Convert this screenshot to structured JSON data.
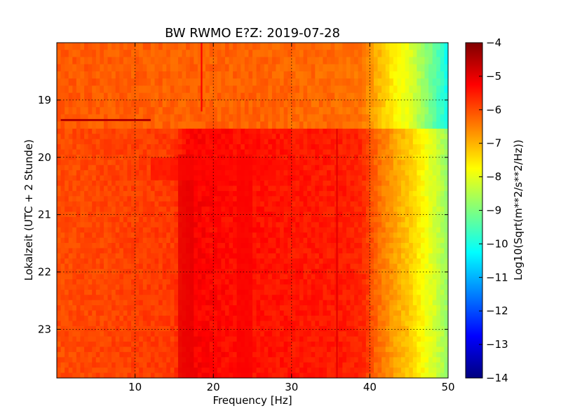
{
  "chart_data": {
    "type": "heatmap",
    "title": "BW RWMO E?Z: 2019-07-28",
    "xlabel": "Frequency [Hz]",
    "ylabel": "Lokalzeit (UTC + 2 Stunde)",
    "xlim": [
      0,
      50
    ],
    "ylim": [
      18.0,
      23.85
    ],
    "y_inverted": true,
    "grid": true,
    "x_ticks": [
      10,
      20,
      30,
      40,
      50
    ],
    "y_ticks": [
      19,
      20,
      21,
      22,
      23
    ],
    "colorbar": {
      "label": "Log10(Sqrt(m**2/s**2/Hz))",
      "range": [
        -14,
        -4
      ],
      "ticks": [
        -4,
        -5,
        -6,
        -7,
        -8,
        -9,
        -10,
        -11,
        -12,
        -13,
        -14
      ],
      "colormap": "jet",
      "stops": [
        "#00007f",
        "#0000ff",
        "#007fff",
        "#00ffff",
        "#7fff7f",
        "#ffff00",
        "#ff7f00",
        "#ff0000",
        "#7f0000"
      ]
    },
    "background_level": -6.2,
    "spectral_profile": [
      {
        "freq": 0,
        "before_19_5": -6.1,
        "after_19_5": -6.0
      },
      {
        "freq": 15,
        "before_19_5": -6.2,
        "after_19_5": -5.8
      },
      {
        "freq": 17,
        "before_19_5": -6.2,
        "after_19_5": -5.2
      },
      {
        "freq": 24,
        "before_19_5": -6.2,
        "after_19_5": -5.4
      },
      {
        "freq": 36,
        "before_19_5": -6.3,
        "after_19_5": -5.5
      },
      {
        "freq": 39,
        "before_19_5": -6.4,
        "after_19_5": -5.6
      },
      {
        "freq": 41,
        "before_19_5": -7.0,
        "after_19_5": -6.3
      },
      {
        "freq": 43,
        "before_19_5": -7.6,
        "after_19_5": -6.8
      },
      {
        "freq": 45,
        "before_19_5": -8.0,
        "after_19_5": -7.2
      },
      {
        "freq": 47,
        "before_19_5": -8.8,
        "after_19_5": -7.8
      },
      {
        "freq": 49,
        "before_19_5": -9.6,
        "after_19_5": -8.4
      },
      {
        "freq": 50,
        "before_19_5": -10.2,
        "after_19_5": -8.8
      }
    ],
    "features": [
      {
        "kind": "vertical-line",
        "freq": 18.5,
        "time_start": 18.0,
        "time_end": 19.2,
        "level": -5.2
      },
      {
        "kind": "vertical-band",
        "freq_start": 15.5,
        "freq_end": 17.5,
        "time_start": 19.95,
        "time_end": 23.85,
        "level": -5.0
      },
      {
        "kind": "vertical-band",
        "freq_start": 23,
        "freq_end": 25,
        "time_start": 19.95,
        "time_end": 23.85,
        "level": -5.2
      },
      {
        "kind": "vertical-line",
        "freq": 35.8,
        "time_start": 19.5,
        "time_end": 23.85,
        "level": -5.0
      },
      {
        "kind": "horizontal-line",
        "time": 19.35,
        "freq_start": 0.5,
        "freq_end": 12,
        "level": -4.5
      },
      {
        "kind": "horizontal-band",
        "time_start": 20.0,
        "time_end": 20.4,
        "freq_start": 12,
        "freq_end": 28,
        "level": -5.3
      }
    ]
  }
}
